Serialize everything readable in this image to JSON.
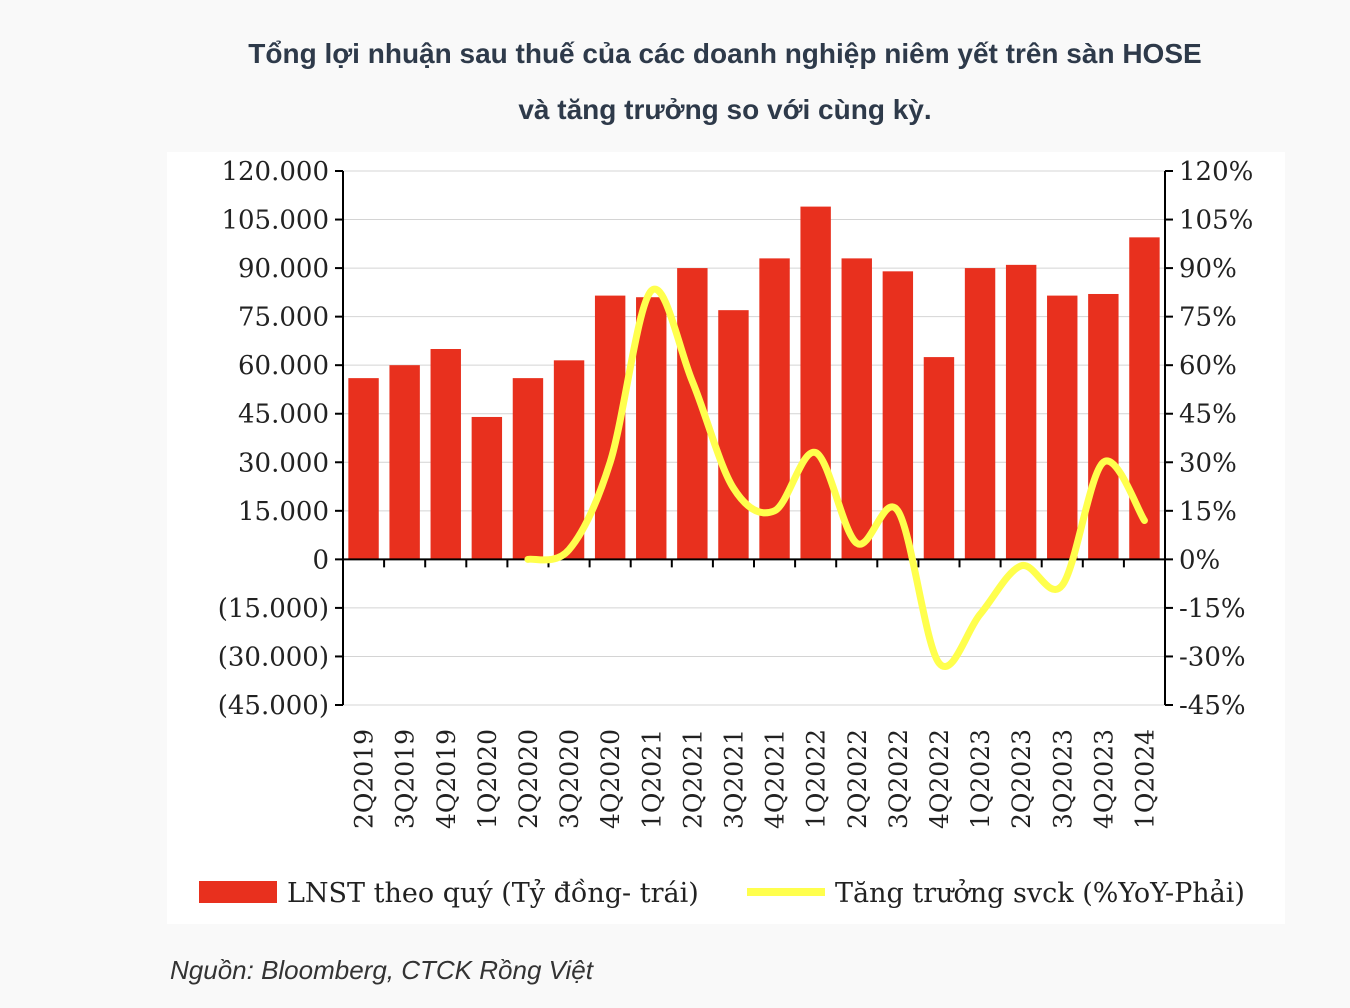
{
  "title_line1": "Tổng lợi nhuận sau thuế của các doanh nghiệp niêm yết trên sàn HOSE",
  "title_line2": "và tăng trưởng so với cùng kỳ.",
  "source": "Nguồn: Bloomberg, CTCK Rồng Việt",
  "chart_data": {
    "type": "bar",
    "title": "Tổng lợi nhuận sau thuế của các doanh nghiệp niêm yết trên sàn HOSE và tăng trưởng so với cùng kỳ.",
    "categories": [
      "2Q2019",
      "3Q2019",
      "4Q2019",
      "1Q2020",
      "2Q2020",
      "3Q2020",
      "4Q2020",
      "1Q2021",
      "2Q2021",
      "3Q2021",
      "4Q2021",
      "1Q2022",
      "2Q2022",
      "3Q2022",
      "4Q2022",
      "1Q2023",
      "2Q2023",
      "3Q2023",
      "4Q2023",
      "1Q2024"
    ],
    "series": [
      {
        "name": "LNST theo quý (Tỷ đồng- trái)",
        "type": "bar",
        "axis": "left",
        "color": "#e8301e",
        "values": [
          56000,
          60000,
          65000,
          44000,
          56000,
          61500,
          81500,
          81000,
          90000,
          77000,
          93000,
          109000,
          93000,
          89000,
          62500,
          90000,
          91000,
          81500,
          82000,
          99500
        ]
      },
      {
        "name": "Tăng trưởng svck (%YoY-Phải)",
        "type": "line",
        "axis": "right",
        "color": "#ffff4d",
        "values": [
          null,
          null,
          null,
          null,
          0,
          3,
          30,
          83,
          55,
          22,
          15,
          33,
          5,
          15,
          -32,
          -17,
          -2,
          -8,
          30,
          12
        ]
      }
    ],
    "y_left": {
      "lim": [
        -45000,
        120000
      ],
      "ticks": [
        120000,
        105000,
        90000,
        75000,
        60000,
        45000,
        30000,
        15000,
        0,
        -15000,
        -30000,
        -45000
      ],
      "tick_labels": [
        "120.000",
        "105.000",
        "90.000",
        "75.000",
        "60.000",
        "45.000",
        "30.000",
        "15.000",
        "0",
        "(15.000)",
        "(30.000)",
        "(45.000)"
      ]
    },
    "y_right": {
      "lim": [
        -45,
        120
      ],
      "ticks": [
        120,
        105,
        90,
        75,
        60,
        45,
        30,
        15,
        0,
        -15,
        -30,
        -45
      ],
      "tick_labels": [
        "120%",
        "105%",
        "90%",
        "75%",
        "60%",
        "45%",
        "30%",
        "15%",
        "0%",
        "-15%",
        "-30%",
        "-45%"
      ]
    },
    "grid": "horizontal",
    "legend": "bottom"
  }
}
